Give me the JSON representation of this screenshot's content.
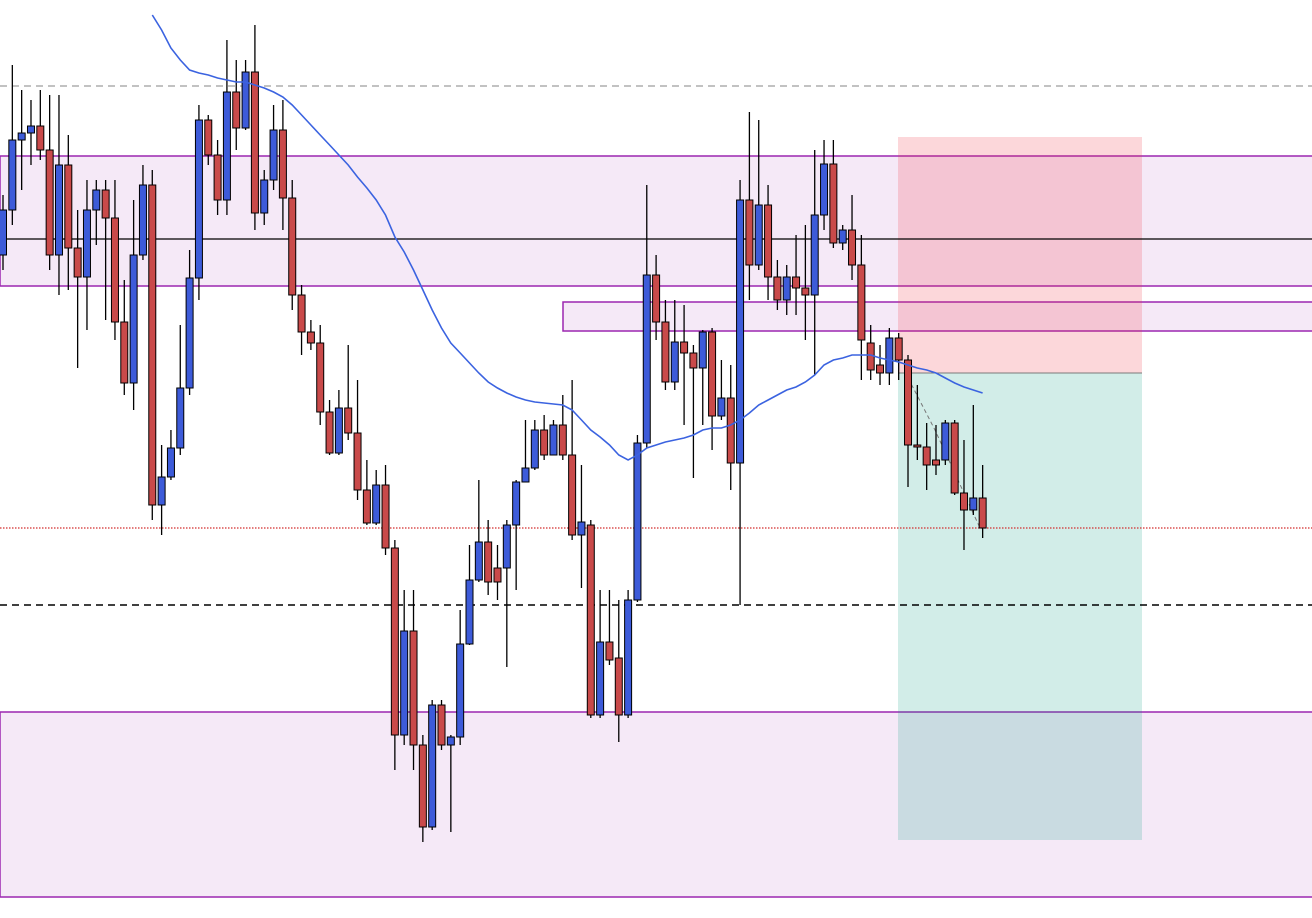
{
  "chart_data": {
    "type": "candlestick",
    "ylim": [
      0,
      918
    ],
    "up_color": "#3d5bd9",
    "down_color": "#c94a4a",
    "candles": [
      [
        663,
        723,
        648,
        708
      ],
      [
        708,
        853,
        693,
        778
      ],
      [
        778,
        828,
        728,
        785
      ],
      [
        785,
        818,
        753,
        792
      ],
      [
        792,
        828,
        758,
        768
      ],
      [
        768,
        823,
        648,
        663
      ],
      [
        663,
        823,
        623,
        753
      ],
      [
        753,
        783,
        628,
        670
      ],
      [
        670,
        708,
        550,
        641
      ],
      [
        641,
        738,
        588,
        708
      ],
      [
        708,
        738,
        673,
        728
      ],
      [
        728,
        738,
        598,
        700
      ],
      [
        700,
        738,
        578,
        596
      ],
      [
        596,
        638,
        523,
        535
      ],
      [
        535,
        718,
        508,
        663
      ],
      [
        663,
        753,
        658,
        733
      ],
      [
        733,
        748,
        398,
        413
      ],
      [
        413,
        473,
        383,
        441
      ],
      [
        441,
        488,
        438,
        470
      ],
      [
        470,
        593,
        463,
        530
      ],
      [
        530,
        668,
        523,
        640
      ],
      [
        640,
        813,
        618,
        798
      ],
      [
        798,
        803,
        753,
        763
      ],
      [
        763,
        778,
        703,
        718
      ],
      [
        718,
        878,
        703,
        826
      ],
      [
        826,
        858,
        768,
        790
      ],
      [
        790,
        858,
        788,
        846
      ],
      [
        846,
        893,
        688,
        705
      ],
      [
        705,
        748,
        693,
        738
      ],
      [
        738,
        813,
        728,
        788
      ],
      [
        788,
        818,
        688,
        720
      ],
      [
        720,
        738,
        608,
        623
      ],
      [
        623,
        633,
        563,
        586
      ],
      [
        586,
        598,
        568,
        575
      ],
      [
        575,
        593,
        493,
        506
      ],
      [
        506,
        518,
        463,
        465
      ],
      [
        465,
        528,
        463,
        510
      ],
      [
        510,
        573,
        478,
        485
      ],
      [
        485,
        538,
        418,
        428
      ],
      [
        428,
        458,
        393,
        395
      ],
      [
        395,
        448,
        393,
        433
      ],
      [
        433,
        453,
        363,
        370
      ],
      [
        370,
        378,
        148,
        183
      ],
      [
        183,
        328,
        173,
        287
      ],
      [
        287,
        328,
        148,
        173
      ],
      [
        173,
        183,
        76,
        91
      ],
      [
        91,
        218,
        88,
        213
      ],
      [
        213,
        218,
        168,
        173
      ],
      [
        173,
        183,
        86,
        181
      ],
      [
        181,
        308,
        173,
        274
      ],
      [
        274,
        373,
        273,
        338
      ],
      [
        338,
        438,
        336,
        376
      ],
      [
        376,
        398,
        323,
        336
      ],
      [
        350,
        373,
        318,
        336
      ],
      [
        350,
        398,
        251,
        393
      ],
      [
        393,
        438,
        328,
        436
      ],
      [
        436,
        498,
        436,
        450
      ],
      [
        450,
        498,
        448,
        488
      ],
      [
        488,
        503,
        458,
        463
      ],
      [
        463,
        498,
        463,
        493
      ],
      [
        493,
        523,
        458,
        463
      ],
      [
        463,
        538,
        378,
        383
      ],
      [
        383,
        453,
        330,
        396
      ],
      [
        393,
        398,
        200,
        203
      ],
      [
        203,
        328,
        200,
        276
      ],
      [
        276,
        328,
        253,
        258
      ],
      [
        260,
        318,
        176,
        203
      ],
      [
        203,
        328,
        200,
        318
      ],
      [
        318,
        483,
        316,
        475
      ],
      [
        475,
        733,
        470,
        643
      ],
      [
        643,
        663,
        578,
        596
      ],
      [
        596,
        618,
        528,
        536
      ],
      [
        536,
        618,
        528,
        576
      ],
      [
        576,
        613,
        493,
        565
      ],
      [
        565,
        573,
        440,
        550
      ],
      [
        550,
        588,
        493,
        586
      ],
      [
        586,
        590,
        468,
        502
      ],
      [
        502,
        558,
        498,
        520
      ],
      [
        520,
        553,
        428,
        455
      ],
      [
        455,
        738,
        313,
        718
      ],
      [
        718,
        806,
        618,
        653
      ],
      [
        653,
        798,
        648,
        713
      ],
      [
        713,
        733,
        618,
        641
      ],
      [
        641,
        658,
        608,
        618
      ],
      [
        618,
        653,
        603,
        641
      ],
      [
        641,
        683,
        603,
        630
      ],
      [
        630,
        693,
        578,
        623
      ],
      [
        623,
        768,
        543,
        703
      ],
      [
        703,
        778,
        688,
        754
      ],
      [
        754,
        778,
        670,
        675
      ],
      [
        675,
        693,
        668,
        688
      ],
      [
        688,
        723,
        638,
        653
      ],
      [
        653,
        683,
        538,
        578
      ],
      [
        575,
        593,
        538,
        548
      ],
      [
        553,
        573,
        533,
        545
      ],
      [
        545,
        590,
        533,
        580
      ],
      [
        580,
        585,
        538,
        558
      ],
      [
        558,
        563,
        431,
        473
      ],
      [
        473,
        533,
        458,
        471
      ],
      [
        471,
        495,
        428,
        453
      ],
      [
        458,
        493,
        443,
        453
      ],
      [
        458,
        498,
        453,
        495
      ],
      [
        495,
        498,
        423,
        425
      ],
      [
        425,
        478,
        368,
        408
      ],
      [
        408,
        513,
        403,
        420
      ],
      [
        420,
        453,
        380,
        390
      ]
    ],
    "ma": {
      "color": "#3b63e0",
      "values": [
        null,
        null,
        null,
        null,
        null,
        null,
        null,
        null,
        null,
        null,
        null,
        null,
        null,
        null,
        null,
        null,
        903,
        888,
        870,
        858,
        848,
        845,
        843,
        840,
        838,
        836,
        836,
        833,
        830,
        826,
        821,
        813,
        803,
        793,
        783,
        773,
        763,
        753,
        741,
        730,
        718,
        703,
        681,
        666,
        648,
        628,
        608,
        590,
        575,
        565,
        555,
        545,
        536,
        530,
        525,
        521,
        518,
        516,
        515,
        514,
        513,
        508,
        498,
        488,
        481,
        473,
        463,
        458,
        463,
        470,
        473,
        476,
        478,
        480,
        483,
        488,
        490,
        490,
        493,
        498,
        505,
        513,
        518,
        523,
        528,
        531,
        536,
        543,
        553,
        558,
        560,
        563,
        563,
        563,
        560,
        558,
        556,
        553,
        550,
        548,
        545,
        540,
        535,
        531,
        528,
        525
      ]
    },
    "zones": [
      {
        "top": 762,
        "bottom": 632,
        "color": "#9c27b0"
      },
      {
        "top": 616,
        "bottom": 587,
        "color": "#9c27b0"
      },
      {
        "top": 206,
        "bottom": 21,
        "color": "#9c27b0"
      }
    ],
    "levels": [
      {
        "value": 832,
        "color": "#9e9e9e",
        "style": "dashed"
      },
      {
        "value": 679,
        "color": "#000000",
        "style": "solid"
      },
      {
        "value": 390,
        "color": "#d32f2f",
        "style": "dotted"
      },
      {
        "value": 313,
        "color": "#000000",
        "style": "dashed"
      }
    ],
    "position": {
      "stop": 781,
      "entry": 545,
      "target": 78
    }
  }
}
